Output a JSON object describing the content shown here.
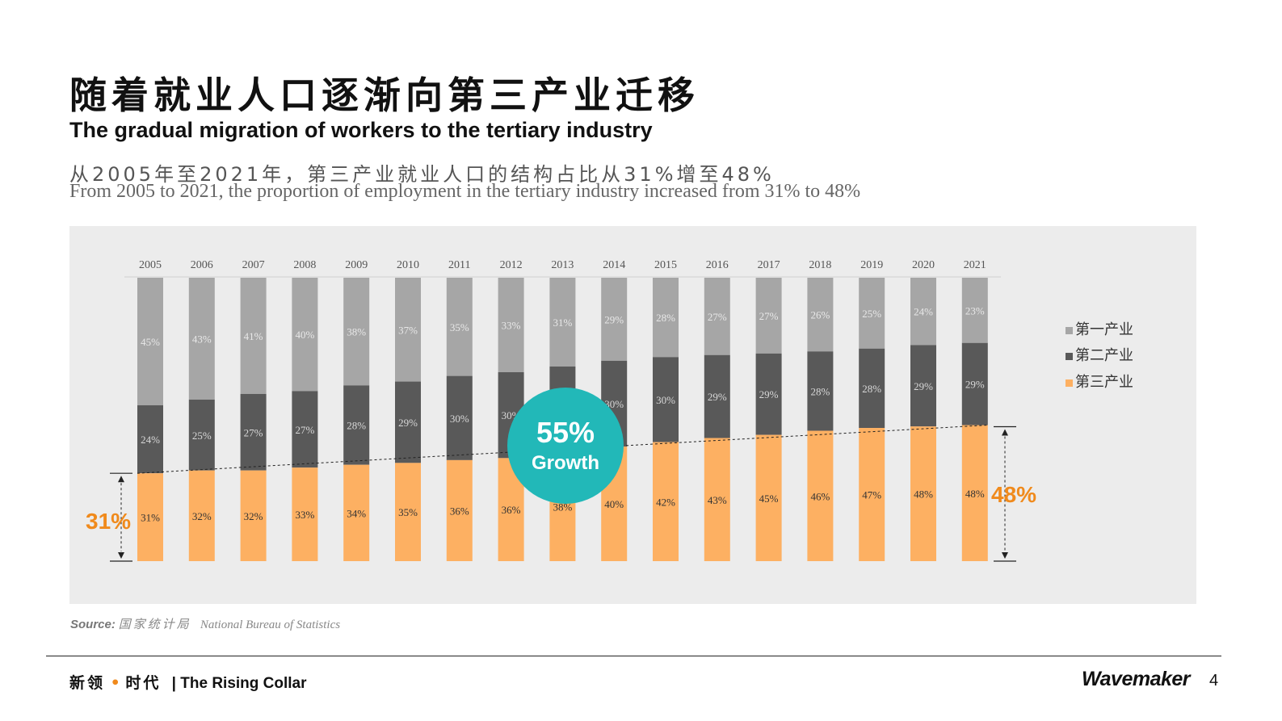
{
  "title_cn": "随着就业人口逐渐向第三产业迁移",
  "title_en": "The gradual migration of workers to the tertiary industry",
  "subtitle_cn": "从2005年至2021年，第三产业就业人口的结构占比从31%增至48%",
  "subtitle_en": "From 2005 to 2021, the proportion of employment in the tertiary industry increased from 31% to 48%",
  "chart_data": {
    "type": "bar",
    "stacked": true,
    "percent_stacked": true,
    "categories": [
      "2005",
      "2006",
      "2007",
      "2008",
      "2009",
      "2010",
      "2011",
      "2012",
      "2013",
      "2014",
      "2015",
      "2016",
      "2017",
      "2018",
      "2019",
      "2020",
      "2021"
    ],
    "series": [
      {
        "name": "第一产业",
        "color": "#a6a6a6",
        "values": [
          45,
          43,
          41,
          40,
          38,
          37,
          35,
          33,
          31,
          29,
          28,
          27,
          27,
          26,
          25,
          24,
          23
        ]
      },
      {
        "name": "第二产业",
        "color": "#595959",
        "values": [
          24,
          25,
          27,
          27,
          28,
          29,
          30,
          30,
          30,
          30,
          30,
          29,
          29,
          28,
          28,
          29,
          29
        ]
      },
      {
        "name": "第三产业",
        "color": "#fdb062",
        "values": [
          31,
          32,
          32,
          33,
          34,
          35,
          36,
          36,
          38,
          40,
          42,
          43,
          45,
          46,
          47,
          48,
          48
        ]
      }
    ],
    "legend_position": "right",
    "start_value_label": "31%",
    "end_value_label": "48%",
    "growth_value": "55%",
    "growth_label": "Growth"
  },
  "source": {
    "label": "Source:",
    "cn": "国家统计局",
    "en": "National Bureau of Statistics"
  },
  "footer": {
    "brand_cn_a": "新领",
    "brand_dot": "•",
    "brand_cn_b": "时代",
    "brand_en": "| The Rising Collar",
    "logo": "Wavemaker",
    "page_number": "4"
  },
  "colors": {
    "accent_orange": "#f08a1c",
    "teal": "#22b8b8",
    "panel": "#ececec"
  }
}
